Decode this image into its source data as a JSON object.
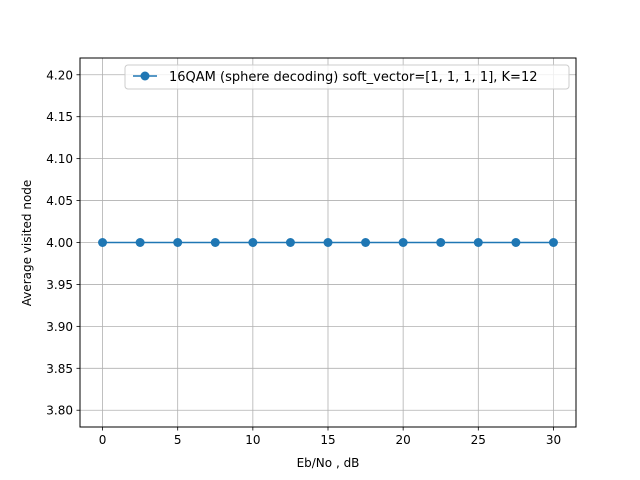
{
  "chart_data": {
    "type": "line",
    "xlabel": "Eb/No , dB",
    "ylabel": "Average visited node",
    "xlim": [
      -1.5,
      31.5
    ],
    "ylim": [
      3.78,
      4.22
    ],
    "xticks": [
      0,
      5,
      10,
      15,
      20,
      25,
      30
    ],
    "yticks": [
      3.8,
      3.85,
      3.9,
      3.95,
      4.0,
      4.05,
      4.1,
      4.15,
      4.2
    ],
    "xtick_labels": [
      "0",
      "5",
      "10",
      "15",
      "20",
      "25",
      "30"
    ],
    "ytick_labels": [
      "3.80",
      "3.85",
      "3.90",
      "3.95",
      "4.00",
      "4.05",
      "4.10",
      "4.15",
      "4.20"
    ],
    "grid": true,
    "legend_position": "top-right",
    "series": [
      {
        "name": "16QAM (sphere decoding) soft_vector=[1, 1, 1, 1], K=12",
        "color": "#1f77b4",
        "marker": "circle",
        "x": [
          0,
          2.5,
          5,
          7.5,
          10,
          12.5,
          15,
          17.5,
          20,
          22.5,
          25,
          27.5,
          30
        ],
        "y": [
          4.0,
          4.0,
          4.0,
          4.0,
          4.0,
          4.0,
          4.0,
          4.0,
          4.0,
          4.0,
          4.0,
          4.0,
          4.0
        ]
      }
    ]
  }
}
